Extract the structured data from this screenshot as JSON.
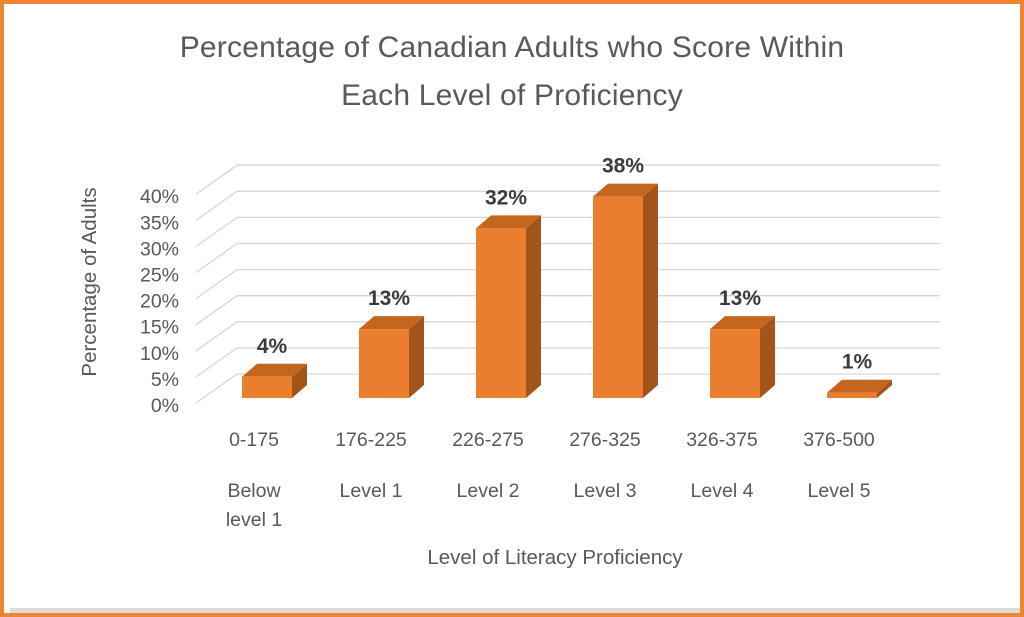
{
  "window": {
    "border_color": "#EE8435",
    "background": "#FFFFFF"
  },
  "title": {
    "line1": "Percentage of Canadian Adults who Score Within",
    "line2": "Each Level of Proficiency"
  },
  "chart_data": {
    "type": "bar",
    "style": "3d",
    "title": "Percentage of Canadian Adults who Score Within Each Level of Proficiency",
    "xlabel": "Level of Literacy Proficiency",
    "ylabel": "Percentage of Adults",
    "categories": [
      "0-175",
      "176-225",
      "226-275",
      "276-325",
      "326-375",
      "376-500"
    ],
    "category_levels": [
      "Below\nlevel 1",
      "Level 1",
      "Level 2",
      "Level 3",
      "Level 4",
      "Level 5"
    ],
    "values": [
      4,
      13,
      32,
      38,
      13,
      1
    ],
    "data_labels": [
      "4%",
      "13%",
      "32%",
      "38%",
      "13%",
      "1%"
    ],
    "y_ticks": [
      "0%",
      "5%",
      "10%",
      "15%",
      "20%",
      "25%",
      "30%",
      "35%",
      "40%"
    ],
    "ylim": [
      0,
      40
    ],
    "y_tick_step": 5,
    "grid": true,
    "legend": "none",
    "colors": {
      "bar_front": "#EB7D2F",
      "bar_top": "#C4661E",
      "bar_side": "#A2541A",
      "gridline": "#D6D6D6",
      "axis_text": "#595959",
      "data_label": "#3B3B3B"
    }
  }
}
